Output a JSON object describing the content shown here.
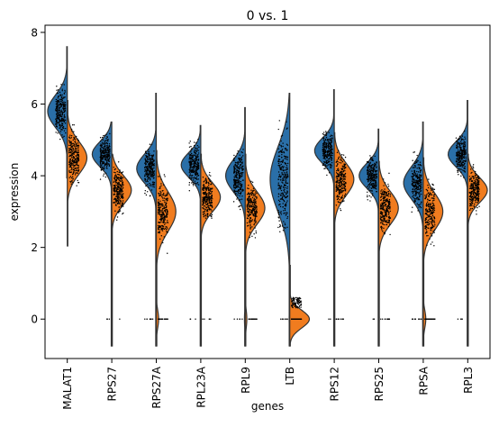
{
  "chart_data": {
    "type": "violin",
    "title": "0 vs. 1",
    "xlabel": "genes",
    "ylabel": "expression",
    "ylim": [
      -1.1,
      8.2
    ],
    "yticks": [
      0,
      2,
      4,
      6,
      8
    ],
    "split": true,
    "colors": {
      "group0": "#2a6fa8",
      "group1": "#f07c1f",
      "edge": "#333333"
    },
    "categories": [
      "MALAT1",
      "RPS27",
      "RPS27A",
      "RPL23A",
      "RPL9",
      "LTB",
      "RPS12",
      "RPS25",
      "RPSA",
      "RPL3"
    ],
    "series": [
      {
        "values": [
          {
            "min": 4.3,
            "max": 7.6,
            "peak": 5.8,
            "sd": 0.45,
            "zero": 0.0
          },
          {
            "min": 1.3,
            "max": 5.5,
            "peak": 4.6,
            "sd": 0.35,
            "zero": 0.01
          },
          {
            "min": 1.0,
            "max": 6.3,
            "peak": 4.2,
            "sd": 0.4,
            "zero": 0.02
          },
          {
            "min": 2.6,
            "max": 5.4,
            "peak": 4.3,
            "sd": 0.35,
            "zero": 0.01
          },
          {
            "min": 1.5,
            "max": 5.9,
            "peak": 4.0,
            "sd": 0.45,
            "zero": 0.04
          },
          {
            "min": 1.2,
            "max": 6.3,
            "peak": 3.9,
            "sd": 0.9,
            "zero": 0.03
          },
          {
            "min": 2.6,
            "max": 6.4,
            "peak": 4.7,
            "sd": 0.35,
            "zero": 0.01
          },
          {
            "min": 2.5,
            "max": 5.3,
            "peak": 4.0,
            "sd": 0.35,
            "zero": 0.01
          },
          {
            "min": 1.5,
            "max": 5.5,
            "peak": 3.8,
            "sd": 0.45,
            "zero": 0.03
          },
          {
            "min": 2.7,
            "max": 6.1,
            "peak": 4.6,
            "sd": 0.35,
            "zero": 0.01
          }
        ]
      },
      {
        "values": [
          {
            "min": 2.4,
            "max": 6.1,
            "peak": 4.5,
            "sd": 0.45,
            "zero": 0.0
          },
          {
            "min": 1.3,
            "max": 4.6,
            "peak": 3.6,
            "sd": 0.4,
            "zero": 0.02
          },
          {
            "min": 1.0,
            "max": 4.7,
            "peak": 3.0,
            "sd": 0.55,
            "zero": 0.12
          },
          {
            "min": 2.0,
            "max": 4.6,
            "peak": 3.4,
            "sd": 0.4,
            "zero": 0.02
          },
          {
            "min": 1.2,
            "max": 4.6,
            "peak": 3.1,
            "sd": 0.45,
            "zero": 0.08
          },
          {
            "min": 0.3,
            "max": 1.5,
            "peak": 0.0,
            "sd": 0.25,
            "zero": 0.7
          },
          {
            "min": 2.2,
            "max": 5.2,
            "peak": 3.9,
            "sd": 0.45,
            "zero": 0.02
          },
          {
            "min": 1.3,
            "max": 4.4,
            "peak": 3.1,
            "sd": 0.45,
            "zero": 0.03
          },
          {
            "min": 1.2,
            "max": 4.5,
            "peak": 3.0,
            "sd": 0.5,
            "zero": 0.13
          },
          {
            "min": 2.0,
            "max": 4.6,
            "peak": 3.6,
            "sd": 0.35,
            "zero": 0.01
          }
        ]
      }
    ]
  }
}
